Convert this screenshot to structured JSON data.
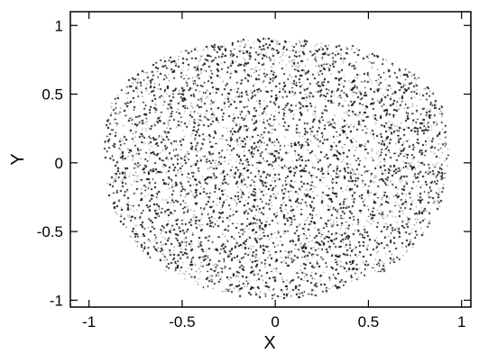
{
  "chart_data": {
    "type": "scatter",
    "title": "",
    "xlabel": "X",
    "ylabel": "Y",
    "xlim": [
      -1.1,
      1.05
    ],
    "ylim": [
      -1.05,
      1.1
    ],
    "grid": false,
    "legend": "none",
    "xticks": {
      "values": [
        -1,
        -0.5,
        0,
        0.5,
        1
      ],
      "labels": [
        "-1",
        "-0.5",
        "0",
        "0.5",
        "1"
      ]
    },
    "yticks": {
      "values": [
        -1,
        -0.5,
        0,
        0.5,
        1
      ],
      "labels": [
        "-1",
        "-0.5",
        "0",
        "0.5",
        "1"
      ]
    },
    "point_color": "#000000",
    "point_count": 60000,
    "region_boundary": {
      "description": "dense uniform cloud of points filling a rounded triangular region, wider at the top",
      "x": [
        -0.92,
        -0.9,
        -0.8,
        -0.6,
        -0.4,
        -0.2,
        0.0,
        0.2,
        0.4,
        0.6,
        0.8,
        0.9,
        0.93,
        0.93,
        0.9,
        0.85,
        0.75,
        0.6,
        0.4,
        0.2,
        0.0,
        -0.2,
        -0.4,
        -0.6,
        -0.75,
        -0.85,
        -0.9,
        -0.92
      ],
      "y": [
        0.1,
        0.4,
        0.6,
        0.77,
        0.86,
        0.9,
        0.91,
        0.9,
        0.86,
        0.77,
        0.6,
        0.4,
        0.1,
        -0.05,
        -0.25,
        -0.4,
        -0.6,
        -0.78,
        -0.9,
        -0.97,
        -0.99,
        -0.97,
        -0.9,
        -0.78,
        -0.6,
        -0.4,
        -0.25,
        0.1
      ]
    }
  }
}
